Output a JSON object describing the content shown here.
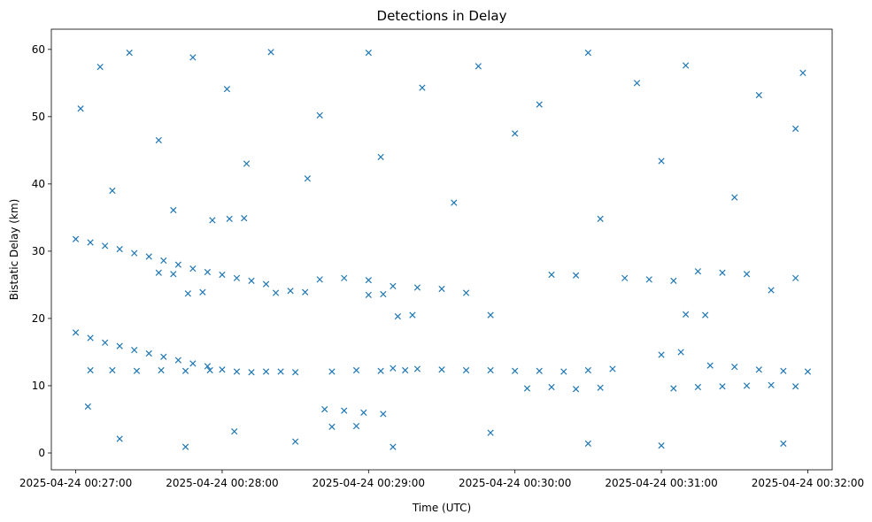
{
  "chart_data": {
    "type": "scatter",
    "title": "Detections in Delay",
    "xlabel": "Time (UTC)",
    "ylabel": "Bistatic Delay (km)",
    "marker": "x",
    "color": "#1f77b4",
    "grid": false,
    "x_unit": "UTC timestamp",
    "xlim": [
      "2025-04-24 00:26:50",
      "2025-04-24 00:32:10"
    ],
    "ylim": [
      -2.5,
      63
    ],
    "x_ticks": [
      "2025-04-24 00:27:00",
      "2025-04-24 00:28:00",
      "2025-04-24 00:29:00",
      "2025-04-24 00:30:00",
      "2025-04-24 00:31:00",
      "2025-04-24 00:32:00"
    ],
    "y_ticks": [
      0,
      10,
      20,
      30,
      40,
      50,
      60
    ],
    "series": [
      {
        "values": [
          [
            "2025-04-24 00:27:00",
            17.9
          ],
          [
            "2025-04-24 00:27:06",
            17.1
          ],
          [
            "2025-04-24 00:27:12",
            16.4
          ],
          [
            "2025-04-24 00:27:18",
            15.9
          ],
          [
            "2025-04-24 00:27:24",
            15.3
          ],
          [
            "2025-04-24 00:27:30",
            14.8
          ],
          [
            "2025-04-24 00:27:36",
            14.3
          ],
          [
            "2025-04-24 00:27:42",
            13.8
          ],
          [
            "2025-04-24 00:27:48",
            13.3
          ],
          [
            "2025-04-24 00:27:54",
            12.9
          ],
          [
            "2025-04-24 00:28:00",
            12.4
          ],
          [
            "2025-04-24 00:28:06",
            12.1
          ],
          [
            "2025-04-24 00:28:12",
            12.0
          ],
          [
            "2025-04-24 00:28:18",
            12.1
          ],
          [
            "2025-04-24 00:28:24",
            12.1
          ],
          [
            "2025-04-24 00:28:30",
            12.0
          ],
          [
            "2025-04-24 00:27:00",
            31.8
          ],
          [
            "2025-04-24 00:27:06",
            31.3
          ],
          [
            "2025-04-24 00:27:12",
            30.8
          ],
          [
            "2025-04-24 00:27:18",
            30.3
          ],
          [
            "2025-04-24 00:27:24",
            29.7
          ],
          [
            "2025-04-24 00:27:30",
            29.2
          ],
          [
            "2025-04-24 00:27:36",
            28.6
          ],
          [
            "2025-04-24 00:27:42",
            28.0
          ],
          [
            "2025-04-24 00:27:48",
            27.4
          ],
          [
            "2025-04-24 00:27:54",
            26.9
          ],
          [
            "2025-04-24 00:28:00",
            26.5
          ],
          [
            "2025-04-24 00:28:06",
            26.0
          ],
          [
            "2025-04-24 00:28:12",
            25.6
          ],
          [
            "2025-04-24 00:28:18",
            25.1
          ],
          [
            "2025-04-24 00:27:06",
            12.3
          ],
          [
            "2025-04-24 00:27:15",
            12.3
          ],
          [
            "2025-04-24 00:27:25",
            12.2
          ],
          [
            "2025-04-24 00:27:35",
            12.3
          ],
          [
            "2025-04-24 00:27:45",
            12.2
          ],
          [
            "2025-04-24 00:27:55",
            12.3
          ],
          [
            "2025-04-24 00:28:22",
            23.8
          ],
          [
            "2025-04-24 00:28:28",
            24.1
          ],
          [
            "2025-04-24 00:28:34",
            23.9
          ],
          [
            "2025-04-24 00:27:56",
            34.6
          ],
          [
            "2025-04-24 00:28:03",
            34.8
          ],
          [
            "2025-04-24 00:28:09",
            34.9
          ],
          [
            "2025-04-24 00:27:34",
            26.8
          ],
          [
            "2025-04-24 00:27:40",
            26.6
          ],
          [
            "2025-04-24 00:27:46",
            23.7
          ],
          [
            "2025-04-24 00:27:52",
            23.9
          ],
          [
            "2025-04-24 00:28:45",
            12.1
          ],
          [
            "2025-04-24 00:28:55",
            12.3
          ],
          [
            "2025-04-24 00:29:05",
            12.2
          ],
          [
            "2025-04-24 00:29:15",
            12.3
          ],
          [
            "2025-04-24 00:28:40",
            25.8
          ],
          [
            "2025-04-24 00:28:50",
            26.0
          ],
          [
            "2025-04-24 00:29:00",
            25.7
          ],
          [
            "2025-04-24 00:29:10",
            24.8
          ],
          [
            "2025-04-24 00:29:20",
            24.6
          ],
          [
            "2025-04-24 00:29:30",
            24.4
          ],
          [
            "2025-04-24 00:29:40",
            23.8
          ],
          [
            "2025-04-24 00:29:50",
            20.5
          ],
          [
            "2025-04-24 00:29:00",
            23.5
          ],
          [
            "2025-04-24 00:29:06",
            23.6
          ],
          [
            "2025-04-24 00:29:12",
            20.3
          ],
          [
            "2025-04-24 00:29:18",
            20.5
          ],
          [
            "2025-04-24 00:28:42",
            6.5
          ],
          [
            "2025-04-24 00:28:50",
            6.3
          ],
          [
            "2025-04-24 00:28:58",
            6.0
          ],
          [
            "2025-04-24 00:29:06",
            5.8
          ],
          [
            "2025-04-24 00:28:45",
            3.9
          ],
          [
            "2025-04-24 00:28:55",
            4.0
          ],
          [
            "2025-04-24 00:29:10",
            12.6
          ],
          [
            "2025-04-24 00:29:20",
            12.5
          ],
          [
            "2025-04-24 00:29:30",
            12.4
          ],
          [
            "2025-04-24 00:29:40",
            12.3
          ],
          [
            "2025-04-24 00:29:50",
            12.3
          ],
          [
            "2025-04-24 00:30:00",
            12.2
          ],
          [
            "2025-04-24 00:30:10",
            12.2
          ],
          [
            "2025-04-24 00:30:20",
            12.1
          ],
          [
            "2025-04-24 00:30:30",
            12.3
          ],
          [
            "2025-04-24 00:30:40",
            12.5
          ],
          [
            "2025-04-24 00:30:05",
            9.6
          ],
          [
            "2025-04-24 00:30:15",
            9.8
          ],
          [
            "2025-04-24 00:30:25",
            9.5
          ],
          [
            "2025-04-24 00:30:35",
            9.7
          ],
          [
            "2025-04-24 00:30:15",
            26.5
          ],
          [
            "2025-04-24 00:30:25",
            26.4
          ],
          [
            "2025-04-24 00:30:45",
            26.0
          ],
          [
            "2025-04-24 00:30:55",
            25.8
          ],
          [
            "2025-04-24 00:31:05",
            25.6
          ],
          [
            "2025-04-24 00:31:15",
            27.0
          ],
          [
            "2025-04-24 00:31:25",
            26.8
          ],
          [
            "2025-04-24 00:31:35",
            26.6
          ],
          [
            "2025-04-24 00:31:45",
            24.2
          ],
          [
            "2025-04-24 00:31:55",
            26.0
          ],
          [
            "2025-04-24 00:31:00",
            14.6
          ],
          [
            "2025-04-24 00:31:08",
            15.0
          ],
          [
            "2025-04-24 00:31:20",
            13.0
          ],
          [
            "2025-04-24 00:31:30",
            12.8
          ],
          [
            "2025-04-24 00:31:40",
            12.4
          ],
          [
            "2025-04-24 00:31:50",
            12.2
          ],
          [
            "2025-04-24 00:32:00",
            12.1
          ],
          [
            "2025-04-24 00:31:10",
            20.6
          ],
          [
            "2025-04-24 00:31:18",
            20.5
          ],
          [
            "2025-04-24 00:31:05",
            9.6
          ],
          [
            "2025-04-24 00:31:15",
            9.8
          ],
          [
            "2025-04-24 00:31:25",
            9.9
          ],
          [
            "2025-04-24 00:31:35",
            10.0
          ],
          [
            "2025-04-24 00:31:45",
            10.1
          ],
          [
            "2025-04-24 00:31:55",
            9.9
          ],
          [
            "2025-04-24 00:27:02",
            51.2
          ],
          [
            "2025-04-24 00:27:10",
            57.4
          ],
          [
            "2025-04-24 00:27:22",
            59.5
          ],
          [
            "2025-04-24 00:27:34",
            46.5
          ],
          [
            "2025-04-24 00:27:48",
            58.8
          ],
          [
            "2025-04-24 00:28:02",
            54.1
          ],
          [
            "2025-04-24 00:28:20",
            59.6
          ],
          [
            "2025-04-24 00:28:40",
            50.2
          ],
          [
            "2025-04-24 00:29:00",
            59.5
          ],
          [
            "2025-04-24 00:29:22",
            54.3
          ],
          [
            "2025-04-24 00:29:45",
            57.5
          ],
          [
            "2025-04-24 00:30:10",
            51.8
          ],
          [
            "2025-04-24 00:30:30",
            59.5
          ],
          [
            "2025-04-24 00:30:50",
            55.0
          ],
          [
            "2025-04-24 00:31:10",
            57.6
          ],
          [
            "2025-04-24 00:31:40",
            53.2
          ],
          [
            "2025-04-24 00:31:58",
            56.5
          ],
          [
            "2025-04-24 00:27:15",
            39.0
          ],
          [
            "2025-04-24 00:27:40",
            36.1
          ],
          [
            "2025-04-24 00:28:10",
            43.0
          ],
          [
            "2025-04-24 00:28:35",
            40.8
          ],
          [
            "2025-04-24 00:29:05",
            44.0
          ],
          [
            "2025-04-24 00:29:35",
            37.2
          ],
          [
            "2025-04-24 00:30:00",
            47.5
          ],
          [
            "2025-04-24 00:30:35",
            34.8
          ],
          [
            "2025-04-24 00:31:00",
            43.4
          ],
          [
            "2025-04-24 00:31:30",
            38.0
          ],
          [
            "2025-04-24 00:31:55",
            48.2
          ],
          [
            "2025-04-24 00:27:05",
            6.9
          ],
          [
            "2025-04-24 00:27:18",
            2.1
          ],
          [
            "2025-04-24 00:27:45",
            0.9
          ],
          [
            "2025-04-24 00:28:05",
            3.2
          ],
          [
            "2025-04-24 00:28:30",
            1.7
          ],
          [
            "2025-04-24 00:29:10",
            0.9
          ],
          [
            "2025-04-24 00:29:50",
            3.0
          ],
          [
            "2025-04-24 00:30:30",
            1.4
          ],
          [
            "2025-04-24 00:31:00",
            1.1
          ],
          [
            "2025-04-24 00:31:50",
            1.4
          ]
        ]
      }
    ]
  }
}
